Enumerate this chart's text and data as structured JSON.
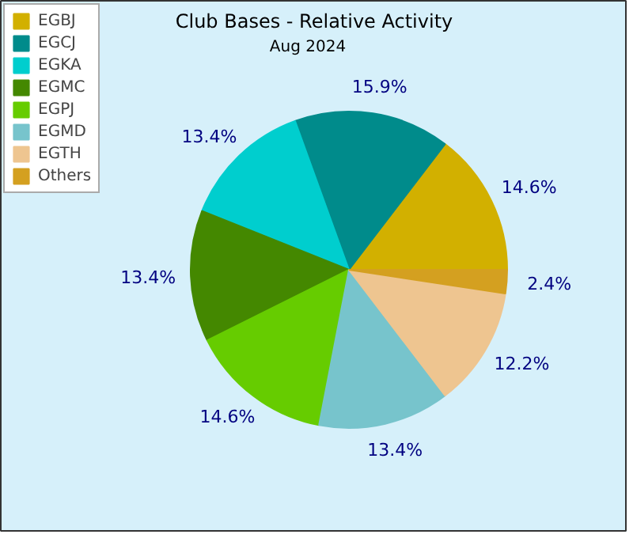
{
  "chart_data": {
    "type": "pie",
    "title": "Club Bases - Relative Activity",
    "subtitle": "Aug 2024",
    "categories": [
      "EGBJ",
      "EGCJ",
      "EGKA",
      "EGMC",
      "EGPJ",
      "EGMD",
      "EGTH",
      "Others"
    ],
    "values": [
      14.6,
      15.9,
      13.4,
      13.4,
      14.6,
      13.4,
      12.2,
      2.4
    ],
    "value_labels": [
      "14.6%",
      "15.9%",
      "13.4%",
      "13.4%",
      "14.6%",
      "13.4%",
      "12.2%",
      "2.4%"
    ],
    "colors": [
      "#d2b000",
      "#008b8b",
      "#00cece",
      "#448800",
      "#66cc00",
      "#77c4cc",
      "#eec590",
      "#d4a020"
    ],
    "legend": "top left"
  }
}
